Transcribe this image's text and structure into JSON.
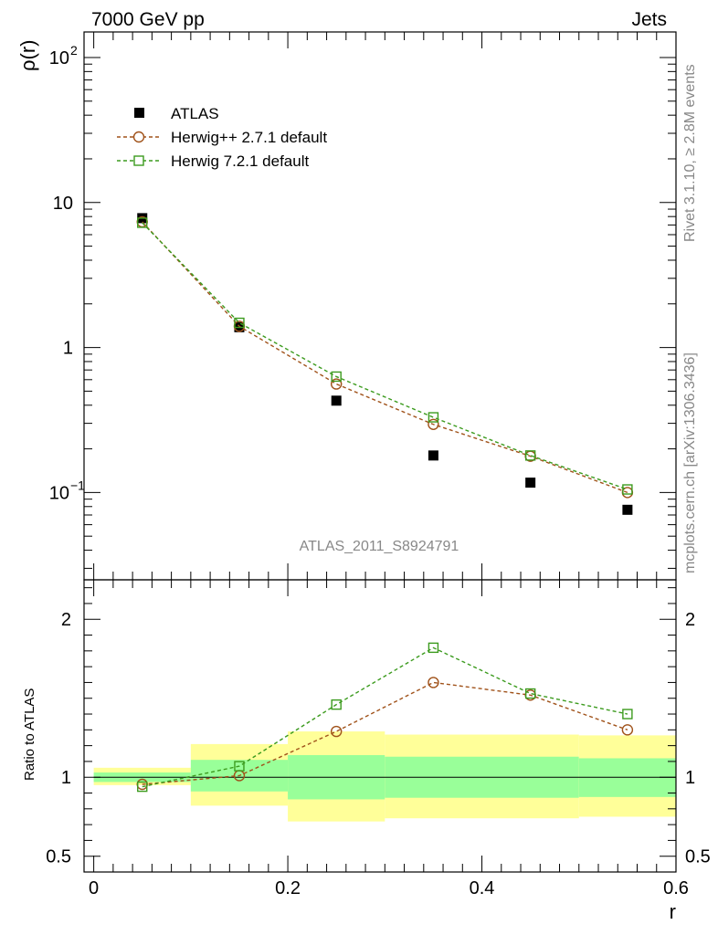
{
  "header": {
    "left": "7000 GeV pp",
    "right": "Jets"
  },
  "side_labels": {
    "rivet": "Rivet 3.1.10, ≥ 2.8M events",
    "mcplots": "mcplots.cern.ch [arXiv:1306.3436]"
  },
  "analysis_tag": "ATLAS_2011_S8924791",
  "colors": {
    "data": "#000000",
    "herwigpp": "#a0521a",
    "herwig7": "#3c9b1e",
    "band_inner": "#99ff99",
    "band_outer": "#ffff99"
  },
  "chart_data": [
    {
      "type": "scatter",
      "panel": "main",
      "ylabel": "ρ(r)",
      "yscale": "log",
      "xlim": [
        -0.01,
        0.6
      ],
      "ylim": [
        0.025,
        150
      ],
      "x_ticks": [
        0,
        0.2,
        0.4,
        0.6
      ],
      "y_tick_labels": [
        {
          "value": 100,
          "base": "10",
          "exp": "2"
        },
        {
          "value": 10,
          "base": "10",
          "exp": ""
        },
        {
          "value": 1,
          "base": "1",
          "exp": ""
        },
        {
          "value": 0.1,
          "base": "10",
          "exp": "−1"
        }
      ],
      "legend_position": "top-left",
      "series": [
        {
          "name": "ATLAS",
          "marker": "filled-square",
          "x": [
            0.05,
            0.15,
            0.25,
            0.35,
            0.45,
            0.55
          ],
          "y": [
            7.8,
            1.38,
            0.43,
            0.18,
            0.117,
            0.076
          ]
        },
        {
          "name": "Herwig++ 2.7.1 default",
          "marker": "open-circle",
          "x": [
            0.05,
            0.15,
            0.25,
            0.35,
            0.45,
            0.55
          ],
          "y": [
            7.35,
            1.4,
            0.56,
            0.295,
            0.178,
            0.1
          ]
        },
        {
          "name": "Herwig 7.2.1 default",
          "marker": "open-square",
          "x": [
            0.05,
            0.15,
            0.25,
            0.35,
            0.45,
            0.55
          ],
          "y": [
            7.25,
            1.48,
            0.63,
            0.33,
            0.18,
            0.105
          ]
        }
      ]
    },
    {
      "type": "line",
      "panel": "ratio",
      "xlabel": "r",
      "ylabel": "Ratio to ATLAS",
      "xlim": [
        -0.01,
        0.6
      ],
      "ylim": [
        0.4,
        2.25
      ],
      "x_ticks": [
        0,
        0.2,
        0.4,
        0.6
      ],
      "x_tick_labels": [
        "0",
        "0.2",
        "0.4",
        "0.6"
      ],
      "y_ticks": [
        0.5,
        1,
        2
      ],
      "y_tick_labels": [
        "0.5",
        "1",
        "2"
      ],
      "bands": [
        {
          "x0": 0.0,
          "x1": 0.1,
          "inner": [
            0.97,
            1.03
          ],
          "outer": [
            0.95,
            1.06
          ]
        },
        {
          "x0": 0.1,
          "x1": 0.2,
          "inner": [
            0.91,
            1.11
          ],
          "outer": [
            0.82,
            1.21
          ]
        },
        {
          "x0": 0.2,
          "x1": 0.3,
          "inner": [
            0.86,
            1.14
          ],
          "outer": [
            0.72,
            1.29
          ]
        },
        {
          "x0": 0.3,
          "x1": 0.5,
          "inner": [
            0.87,
            1.13
          ],
          "outer": [
            0.74,
            1.27
          ]
        },
        {
          "x0": 0.5,
          "x1": 0.6,
          "inner": [
            0.875,
            1.12
          ],
          "outer": [
            0.75,
            1.265
          ]
        }
      ],
      "series": [
        {
          "name": "Herwig++ 2.7.1 default",
          "marker": "open-circle",
          "x": [
            0.05,
            0.15,
            0.25,
            0.35,
            0.45,
            0.55
          ],
          "y": [
            0.955,
            1.01,
            1.29,
            1.6,
            1.52,
            1.3
          ]
        },
        {
          "name": "Herwig 7.2.1 default",
          "marker": "open-square",
          "x": [
            0.05,
            0.15,
            0.25,
            0.35,
            0.45,
            0.55
          ],
          "y": [
            0.94,
            1.07,
            1.46,
            1.82,
            1.53,
            1.4
          ]
        }
      ]
    }
  ]
}
